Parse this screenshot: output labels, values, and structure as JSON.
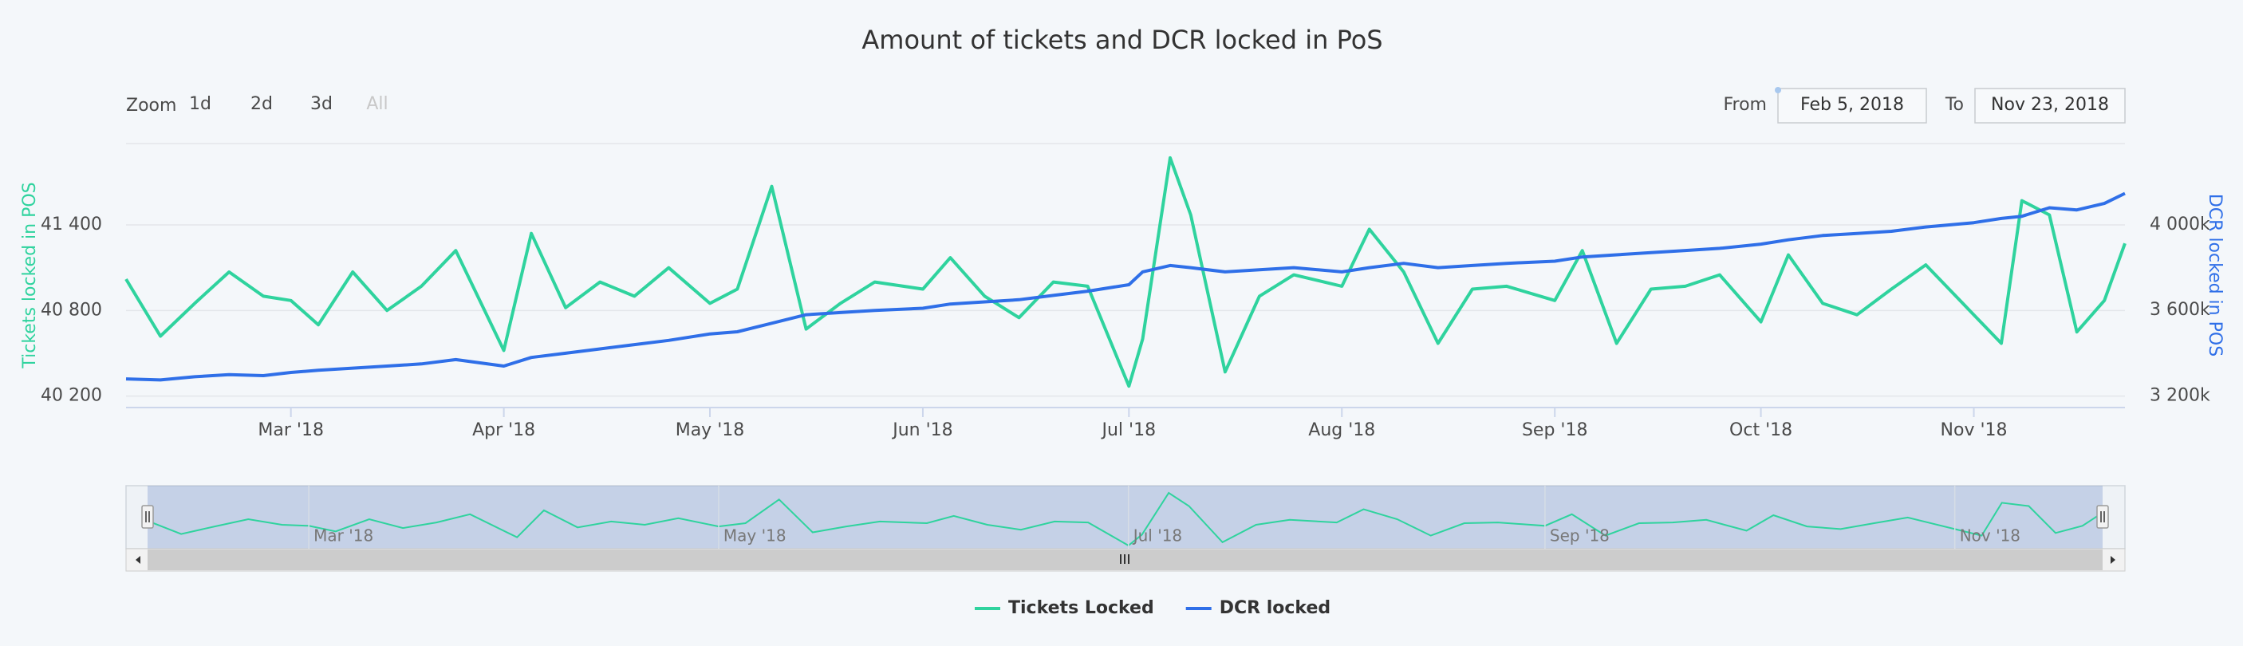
{
  "chart_data": {
    "type": "line",
    "title": "Amount of tickets and DCR locked in PoS",
    "zoom_label": "Zoom",
    "zoom_buttons": [
      "1d",
      "2d",
      "3d",
      "All"
    ],
    "from_label": "From",
    "from": "Feb 5, 2018",
    "to_label": "To",
    "to": "Nov 23, 2018",
    "y_label": "Tickets locked in POS",
    "y2_label": "DCR locked in POS",
    "xlim": [
      "2018-02-05",
      "2018-11-23"
    ],
    "xticks": [
      {
        "value": "2018-03-01",
        "label": "Mar '18"
      },
      {
        "value": "2018-04-01",
        "label": "Apr '18"
      },
      {
        "value": "2018-05-01",
        "label": "May '18"
      },
      {
        "value": "2018-06-01",
        "label": "Jun '18"
      },
      {
        "value": "2018-07-01",
        "label": "Jul '18"
      },
      {
        "value": "2018-08-01",
        "label": "Aug '18"
      },
      {
        "value": "2018-09-01",
        "label": "Sep '18"
      },
      {
        "value": "2018-10-01",
        "label": "Oct '18"
      },
      {
        "value": "2018-11-01",
        "label": "Nov '18"
      }
    ],
    "ylim": [
      40120,
      41970
    ],
    "yticks": [
      {
        "value": 40200,
        "label": "40 200"
      },
      {
        "value": 40800,
        "label": "40 800"
      },
      {
        "value": 41400,
        "label": "41 400"
      }
    ],
    "y2lim": [
      3146000,
      4380000
    ],
    "y2ticks": [
      {
        "value": 3200000,
        "label": "3 200k"
      },
      {
        "value": 3600000,
        "label": "3 600k"
      },
      {
        "value": 4000000,
        "label": "4 000k"
      }
    ],
    "grid": true,
    "legend": "bottom",
    "x": [
      "2018-02-05",
      "2018-02-10",
      "2018-02-15",
      "2018-02-20",
      "2018-02-25",
      "2018-03-01",
      "2018-03-05",
      "2018-03-10",
      "2018-03-15",
      "2018-03-20",
      "2018-03-25",
      "2018-04-01",
      "2018-04-05",
      "2018-04-10",
      "2018-04-15",
      "2018-04-20",
      "2018-04-25",
      "2018-05-01",
      "2018-05-05",
      "2018-05-10",
      "2018-05-15",
      "2018-05-20",
      "2018-05-25",
      "2018-06-01",
      "2018-06-05",
      "2018-06-10",
      "2018-06-15",
      "2018-06-20",
      "2018-06-25",
      "2018-07-01",
      "2018-07-03",
      "2018-07-07",
      "2018-07-10",
      "2018-07-15",
      "2018-07-20",
      "2018-07-25",
      "2018-08-01",
      "2018-08-05",
      "2018-08-10",
      "2018-08-15",
      "2018-08-20",
      "2018-08-25",
      "2018-09-01",
      "2018-09-05",
      "2018-09-10",
      "2018-09-15",
      "2018-09-20",
      "2018-09-25",
      "2018-10-01",
      "2018-10-05",
      "2018-10-10",
      "2018-10-15",
      "2018-10-20",
      "2018-10-25",
      "2018-11-01",
      "2018-11-05",
      "2018-11-08",
      "2018-11-12",
      "2018-11-16",
      "2018-11-20",
      "2018-11-23"
    ],
    "series": [
      {
        "name": "Tickets Locked",
        "color": "#2fd39e",
        "values": [
          41020,
          40620,
          40850,
          41070,
          40900,
          40870,
          40700,
          41070,
          40800,
          40970,
          41220,
          40520,
          41340,
          40820,
          41000,
          40900,
          41100,
          40850,
          40950,
          41670,
          40670,
          40850,
          41000,
          40950,
          41170,
          40900,
          40750,
          41000,
          40970,
          40270,
          40600,
          41870,
          41470,
          40370,
          40900,
          41050,
          40970,
          41370,
          41070,
          40570,
          40950,
          40970,
          40870,
          41220,
          40570,
          40950,
          40970,
          41050,
          40720,
          41190,
          40850,
          40770,
          40950,
          41120,
          40770,
          40570,
          41570,
          41470,
          40650,
          40870,
          41270
        ]
      },
      {
        "name": "DCR locked",
        "color": "#2f6fe8",
        "axis": "y2",
        "values": [
          3280000,
          3275000,
          3290000,
          3300000,
          3295000,
          3310000,
          3320000,
          3330000,
          3340000,
          3350000,
          3370000,
          3340000,
          3380000,
          3400000,
          3420000,
          3440000,
          3460000,
          3490000,
          3500000,
          3540000,
          3580000,
          3590000,
          3600000,
          3610000,
          3630000,
          3640000,
          3650000,
          3670000,
          3690000,
          3720000,
          3780000,
          3810000,
          3800000,
          3780000,
          3790000,
          3800000,
          3780000,
          3800000,
          3820000,
          3800000,
          3810000,
          3820000,
          3830000,
          3850000,
          3860000,
          3870000,
          3880000,
          3890000,
          3910000,
          3930000,
          3950000,
          3960000,
          3970000,
          3990000,
          4010000,
          4030000,
          4040000,
          4080000,
          4070000,
          4100000,
          4147000
        ]
      }
    ]
  }
}
